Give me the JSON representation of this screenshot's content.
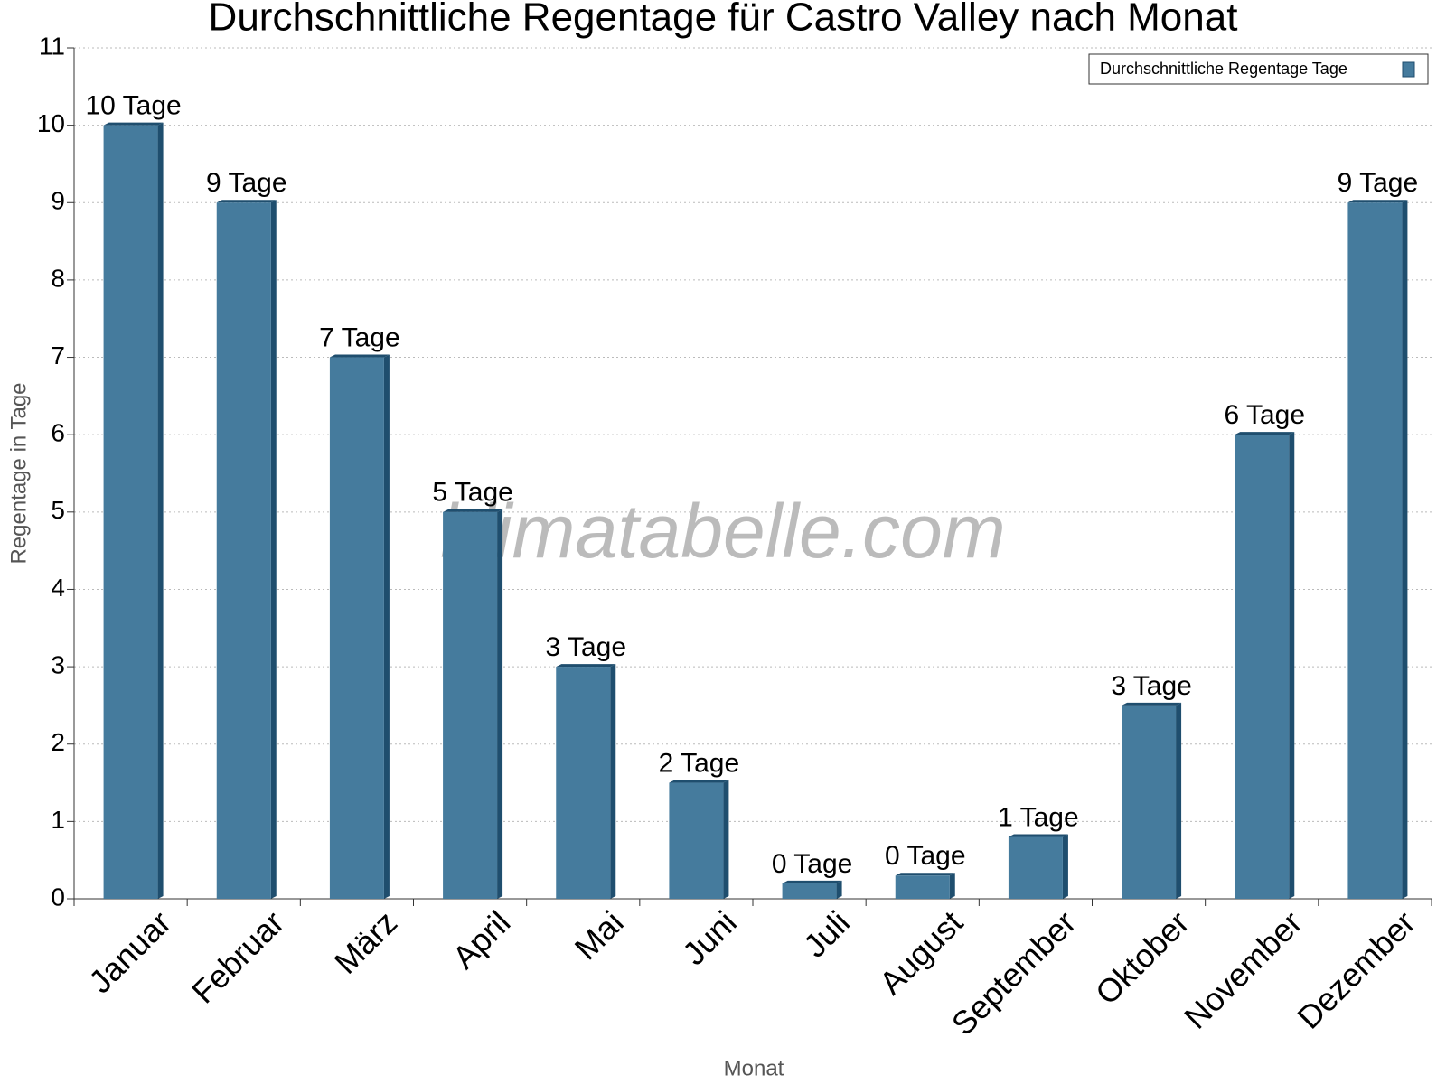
{
  "chart_data": {
    "type": "bar",
    "title": "Durchschnittliche Regentage für Castro Valley nach Monat",
    "x_label": "Monat",
    "y_label": "Regentage in Tage",
    "watermark": "klimatabelle.com",
    "categories": [
      "Januar",
      "Februar",
      "März",
      "April",
      "Mai",
      "Juni",
      "Juli",
      "August",
      "September",
      "Oktober",
      "November",
      "Dezember"
    ],
    "series": [
      {
        "name": "Durchschnittliche Regentage Tage",
        "color": "#457b9d",
        "values": [
          10,
          9,
          7,
          5,
          3,
          1.5,
          0.2,
          0.3,
          0.8,
          2.5,
          6,
          9
        ],
        "value_labels": [
          "10 Tage",
          "9 Tage",
          "7 Tage",
          "5 Tage",
          "3 Tage",
          "2 Tage",
          "0 Tage",
          "0 Tage",
          "1 Tage",
          "3 Tage",
          "6 Tage",
          "9 Tage"
        ]
      }
    ],
    "ylim": [
      0,
      11
    ],
    "yticks": [
      0,
      1,
      2,
      3,
      4,
      5,
      6,
      7,
      8,
      9,
      10,
      11
    ],
    "grid": true,
    "legend": "top-right"
  }
}
